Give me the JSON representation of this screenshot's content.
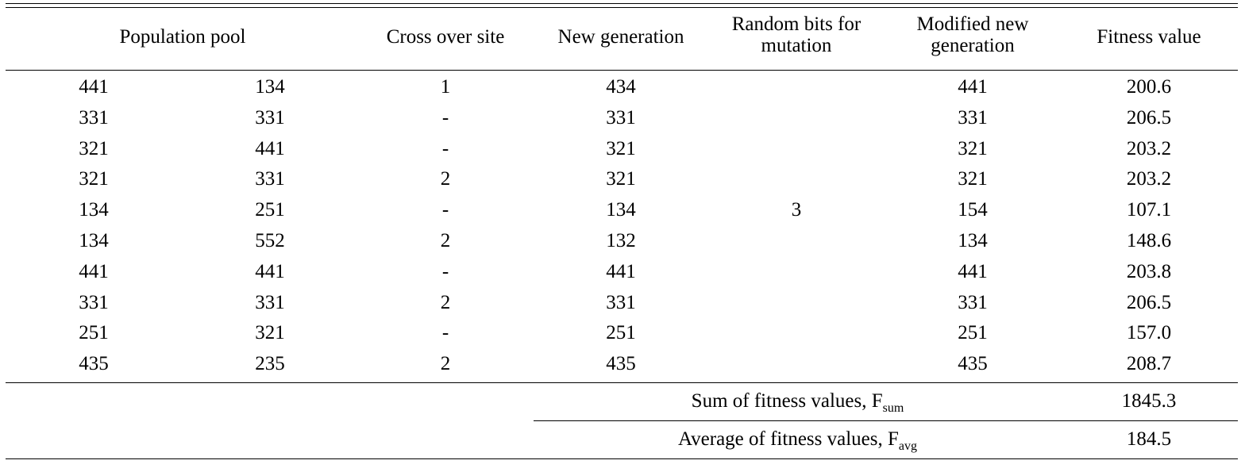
{
  "table": {
    "headers": {
      "population_pool": "Population pool",
      "cross_over_site": "Cross over site",
      "new_generation": "New generation",
      "random_bits_line1": "Random bits for",
      "random_bits_line2": "mutation",
      "modified_line1": "Modified new",
      "modified_line2": "generation",
      "fitness_value": "Fitness value"
    },
    "rows": [
      {
        "pool_a": "441",
        "pool_b": "134",
        "site": "1",
        "new_gen": "434",
        "modified": "441",
        "fitness": "200.6"
      },
      {
        "pool_a": "331",
        "pool_b": "331",
        "site": "-",
        "new_gen": "331",
        "modified": "331",
        "fitness": "206.5"
      },
      {
        "pool_a": "321",
        "pool_b": "441",
        "site": "-",
        "new_gen": "321",
        "modified": "321",
        "fitness": "203.2"
      },
      {
        "pool_a": "321",
        "pool_b": "331",
        "site": "2",
        "new_gen": "321",
        "modified": "321",
        "fitness": "203.2"
      },
      {
        "pool_a": "134",
        "pool_b": "251",
        "site": "-",
        "new_gen": "134",
        "modified": "154",
        "fitness": "107.1"
      },
      {
        "pool_a": "134",
        "pool_b": "552",
        "site": "2",
        "new_gen": "132",
        "modified": "134",
        "fitness": "148.6"
      },
      {
        "pool_a": "441",
        "pool_b": "441",
        "site": "-",
        "new_gen": "441",
        "modified": "441",
        "fitness": "203.8"
      },
      {
        "pool_a": "331",
        "pool_b": "331",
        "site": "2",
        "new_gen": "331",
        "modified": "331",
        "fitness": "206.5"
      },
      {
        "pool_a": "251",
        "pool_b": "321",
        "site": "-",
        "new_gen": "251",
        "modified": "251",
        "fitness": "157.0"
      },
      {
        "pool_a": "435",
        "pool_b": "235",
        "site": "2",
        "new_gen": "435",
        "modified": "435",
        "fitness": "208.7"
      }
    ],
    "random_bits_value": "3",
    "summary": {
      "sum_label": "Sum of fitness values, F",
      "sum_sub": "sum",
      "sum_value": "1845.3",
      "avg_label": "Average of fitness values, F",
      "avg_sub": "avg",
      "avg_value": "184.5"
    }
  }
}
